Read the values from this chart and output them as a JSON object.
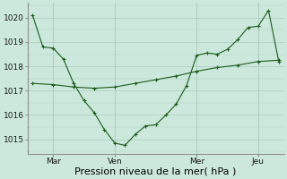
{
  "background_color": "#cce8dc",
  "grid_color": "#a8ccbc",
  "line_color": "#1a5c1a",
  "xlabel": "Pression niveau de la mer( hPa )",
  "ylim": [
    1014.4,
    1020.6
  ],
  "yticks": [
    1015,
    1016,
    1017,
    1018,
    1019,
    1020
  ],
  "x_tick_labels": [
    "Mar",
    "Ven",
    "Mer",
    "Jeu"
  ],
  "x_tick_positions": [
    12,
    48,
    96,
    132
  ],
  "line1_x": [
    0,
    6,
    12,
    18,
    24,
    30,
    36,
    42,
    48,
    54,
    60,
    66,
    72,
    78,
    84,
    90,
    96,
    102,
    108,
    114,
    120,
    126,
    132,
    138,
    144
  ],
  "line1_y": [
    1020.1,
    1018.8,
    1018.75,
    1018.3,
    1017.3,
    1016.6,
    1016.1,
    1015.4,
    1014.85,
    1014.75,
    1015.2,
    1015.55,
    1015.6,
    1016.0,
    1016.45,
    1017.2,
    1018.45,
    1018.55,
    1018.5,
    1018.7,
    1019.1,
    1019.6,
    1019.65,
    1020.3,
    1018.2
  ],
  "line2_x": [
    0,
    12,
    24,
    36,
    48,
    60,
    72,
    84,
    96,
    108,
    120,
    132,
    144
  ],
  "line2_y": [
    1017.3,
    1017.25,
    1017.15,
    1017.1,
    1017.15,
    1017.3,
    1017.45,
    1017.6,
    1017.8,
    1017.95,
    1018.05,
    1018.2,
    1018.25
  ],
  "xlim": [
    -3,
    147
  ],
  "vline_positions": [
    12,
    48,
    96,
    132
  ],
  "figsize": [
    3.2,
    2.0
  ],
  "dpi": 100,
  "xlabel_fontsize": 8,
  "tick_fontsize": 6.5
}
